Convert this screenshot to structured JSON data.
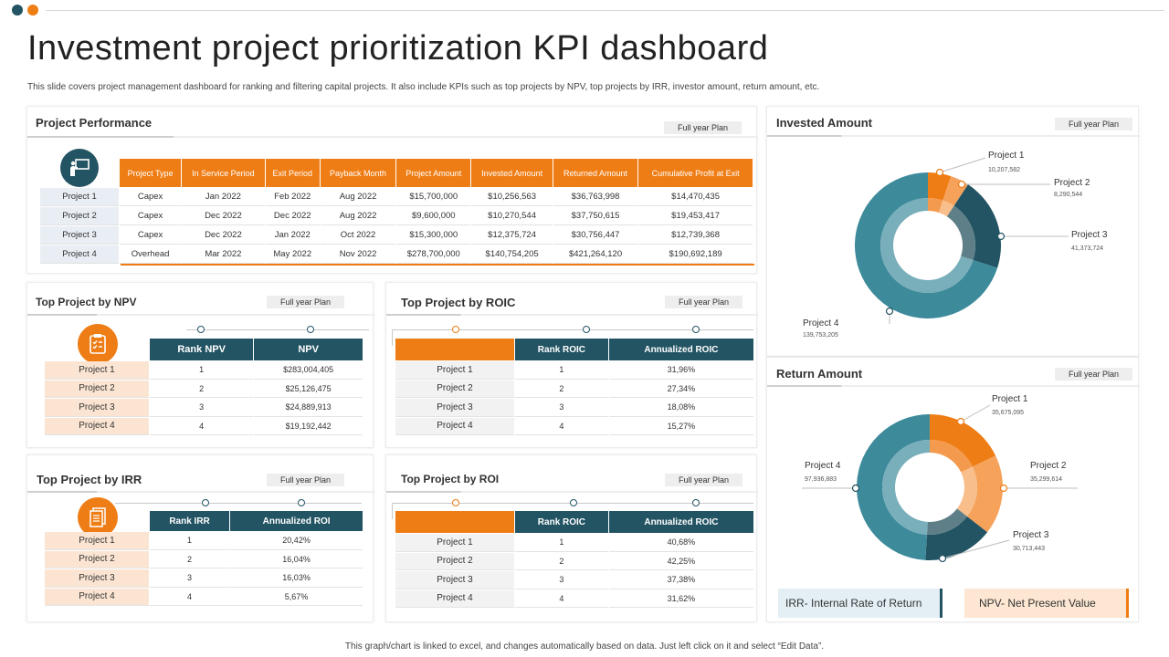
{
  "header": {
    "title": "Investment project prioritization KPI dashboard",
    "subtitle": "This slide covers project management dashboard for ranking and filtering capital projects. It also include KPIs such as top projects by NPV, top projects by IRR,  investor amount, return amount, etc."
  },
  "colors": {
    "orange": "#ef7d15",
    "teal": "#235463",
    "light_teal": "#3d8a9b",
    "light_orange": "#f6a25a"
  },
  "plan_label": "Full year Plan",
  "performance": {
    "title": "Project Performance",
    "icon": "presentation-icon",
    "headers": [
      "Project Type",
      "In Service Period",
      "Exit Period",
      "Payback Month",
      "Project Amount",
      "Invested Amount",
      "Returned Amount",
      "Cumulative Profit at Exit"
    ],
    "rows": [
      {
        "label": "Project 1",
        "cells": [
          "Capex",
          "Jan 2022",
          "Feb 2022",
          "Aug 2022",
          "$15,700,000",
          "$10,256,563",
          "$36,763,998",
          "$14,470,435"
        ]
      },
      {
        "label": "Project 2",
        "cells": [
          "Capex",
          "Dec 2022",
          "Dec 2022",
          "Aug 2022",
          "$9,600,000",
          "$10,270,544",
          "$37,750,615",
          "$19,453,417"
        ]
      },
      {
        "label": "Project 3",
        "cells": [
          "Capex",
          "Dec 2022",
          "Jan 2022",
          "Oct 2022",
          "$15,300,000",
          "$12,375,724",
          "$30,756,447",
          "$12,739,368"
        ]
      },
      {
        "label": "Project 4",
        "cells": [
          "Overhead",
          "Mar 2022",
          "May 2022",
          "Nov 2022",
          "$278,700,000",
          "$140,754,205",
          "$421,264,120",
          "$190,692,189"
        ]
      }
    ]
  },
  "npv": {
    "title": "Top Project by NPV",
    "icon": "checklist-icon",
    "headers": [
      "Rank NPV",
      "NPV"
    ],
    "rows": [
      {
        "label": "Project 1",
        "cells": [
          "1",
          "$283,004,405"
        ]
      },
      {
        "label": "Project  2",
        "cells": [
          "2",
          "$25,126,475"
        ]
      },
      {
        "label": "Project 3",
        "cells": [
          "3",
          "$24,889,913"
        ]
      },
      {
        "label": "Project  4",
        "cells": [
          "4",
          "$19,192,442"
        ]
      }
    ]
  },
  "roic": {
    "title": "Top Project by ROIC",
    "headers": [
      "Rank ROIC",
      "Annualized ROIC"
    ],
    "rows": [
      {
        "label": "Project 1",
        "cells": [
          "1",
          "31,96%"
        ]
      },
      {
        "label": "Project  2",
        "cells": [
          "2",
          "27,34%"
        ]
      },
      {
        "label": "Project 3",
        "cells": [
          "3",
          "18,08%"
        ]
      },
      {
        "label": "Project  4",
        "cells": [
          "4",
          "15,27%"
        ]
      }
    ]
  },
  "irr": {
    "title": "Top Project by IRR",
    "icon": "document-icon",
    "headers": [
      "Rank IRR",
      "Annualized ROI"
    ],
    "rows": [
      {
        "label": "Project 1",
        "cells": [
          "1",
          "20,42%"
        ]
      },
      {
        "label": "Project  2",
        "cells": [
          "2",
          "16,04%"
        ]
      },
      {
        "label": "Project 3",
        "cells": [
          "3",
          "16,03%"
        ]
      },
      {
        "label": "Project  4",
        "cells": [
          "4",
          "5,67%"
        ]
      }
    ]
  },
  "roi": {
    "title": "Top Project by ROI",
    "headers": [
      "Rank ROIC",
      "Annualized ROIC"
    ],
    "rows": [
      {
        "label": "Project 1",
        "cells": [
          "1",
          "40,68%"
        ]
      },
      {
        "label": "Project  2",
        "cells": [
          "2",
          "42,25%"
        ]
      },
      {
        "label": "Project 3",
        "cells": [
          "3",
          "37,38%"
        ]
      },
      {
        "label": "Project  4",
        "cells": [
          "4",
          "31,62%"
        ]
      }
    ]
  },
  "invested": {
    "title": "Invested Amount",
    "labels": [
      {
        "name": "Project 1",
        "value": "10,207,582"
      },
      {
        "name": "Project 2",
        "value": "8,290,544"
      },
      {
        "name": "Project 3",
        "value": "41,373,724"
      },
      {
        "name": "Project 4",
        "value": "139,753,205"
      }
    ]
  },
  "returned": {
    "title": "Return Amount",
    "labels": [
      {
        "name": "Project 1",
        "value": "35,675,095"
      },
      {
        "name": "Project 2",
        "value": "35,299,614"
      },
      {
        "name": "Project 3",
        "value": "30,713,443"
      },
      {
        "name": "Project 4",
        "value": "97,936,883"
      }
    ]
  },
  "legend": {
    "irr": "IRR- Internal Rate of Return",
    "npv": "NPV- Net Present Value"
  },
  "footer": "This graph/chart is linked to excel, and changes automatically based on data. Just left click on it and select “Edit Data”.",
  "chart_data": [
    {
      "type": "pie",
      "categories": [
        "Project 1",
        "Project 2",
        "Project 3",
        "Project 4"
      ],
      "values": [
        10207582,
        8290544,
        41373724,
        139753205
      ]
    },
    {
      "type": "pie",
      "categories": [
        "Project 1",
        "Project 2",
        "Project 3",
        "Project 4"
      ],
      "values": [
        35675095,
        35299614,
        30713443,
        97936883
      ]
    }
  ]
}
